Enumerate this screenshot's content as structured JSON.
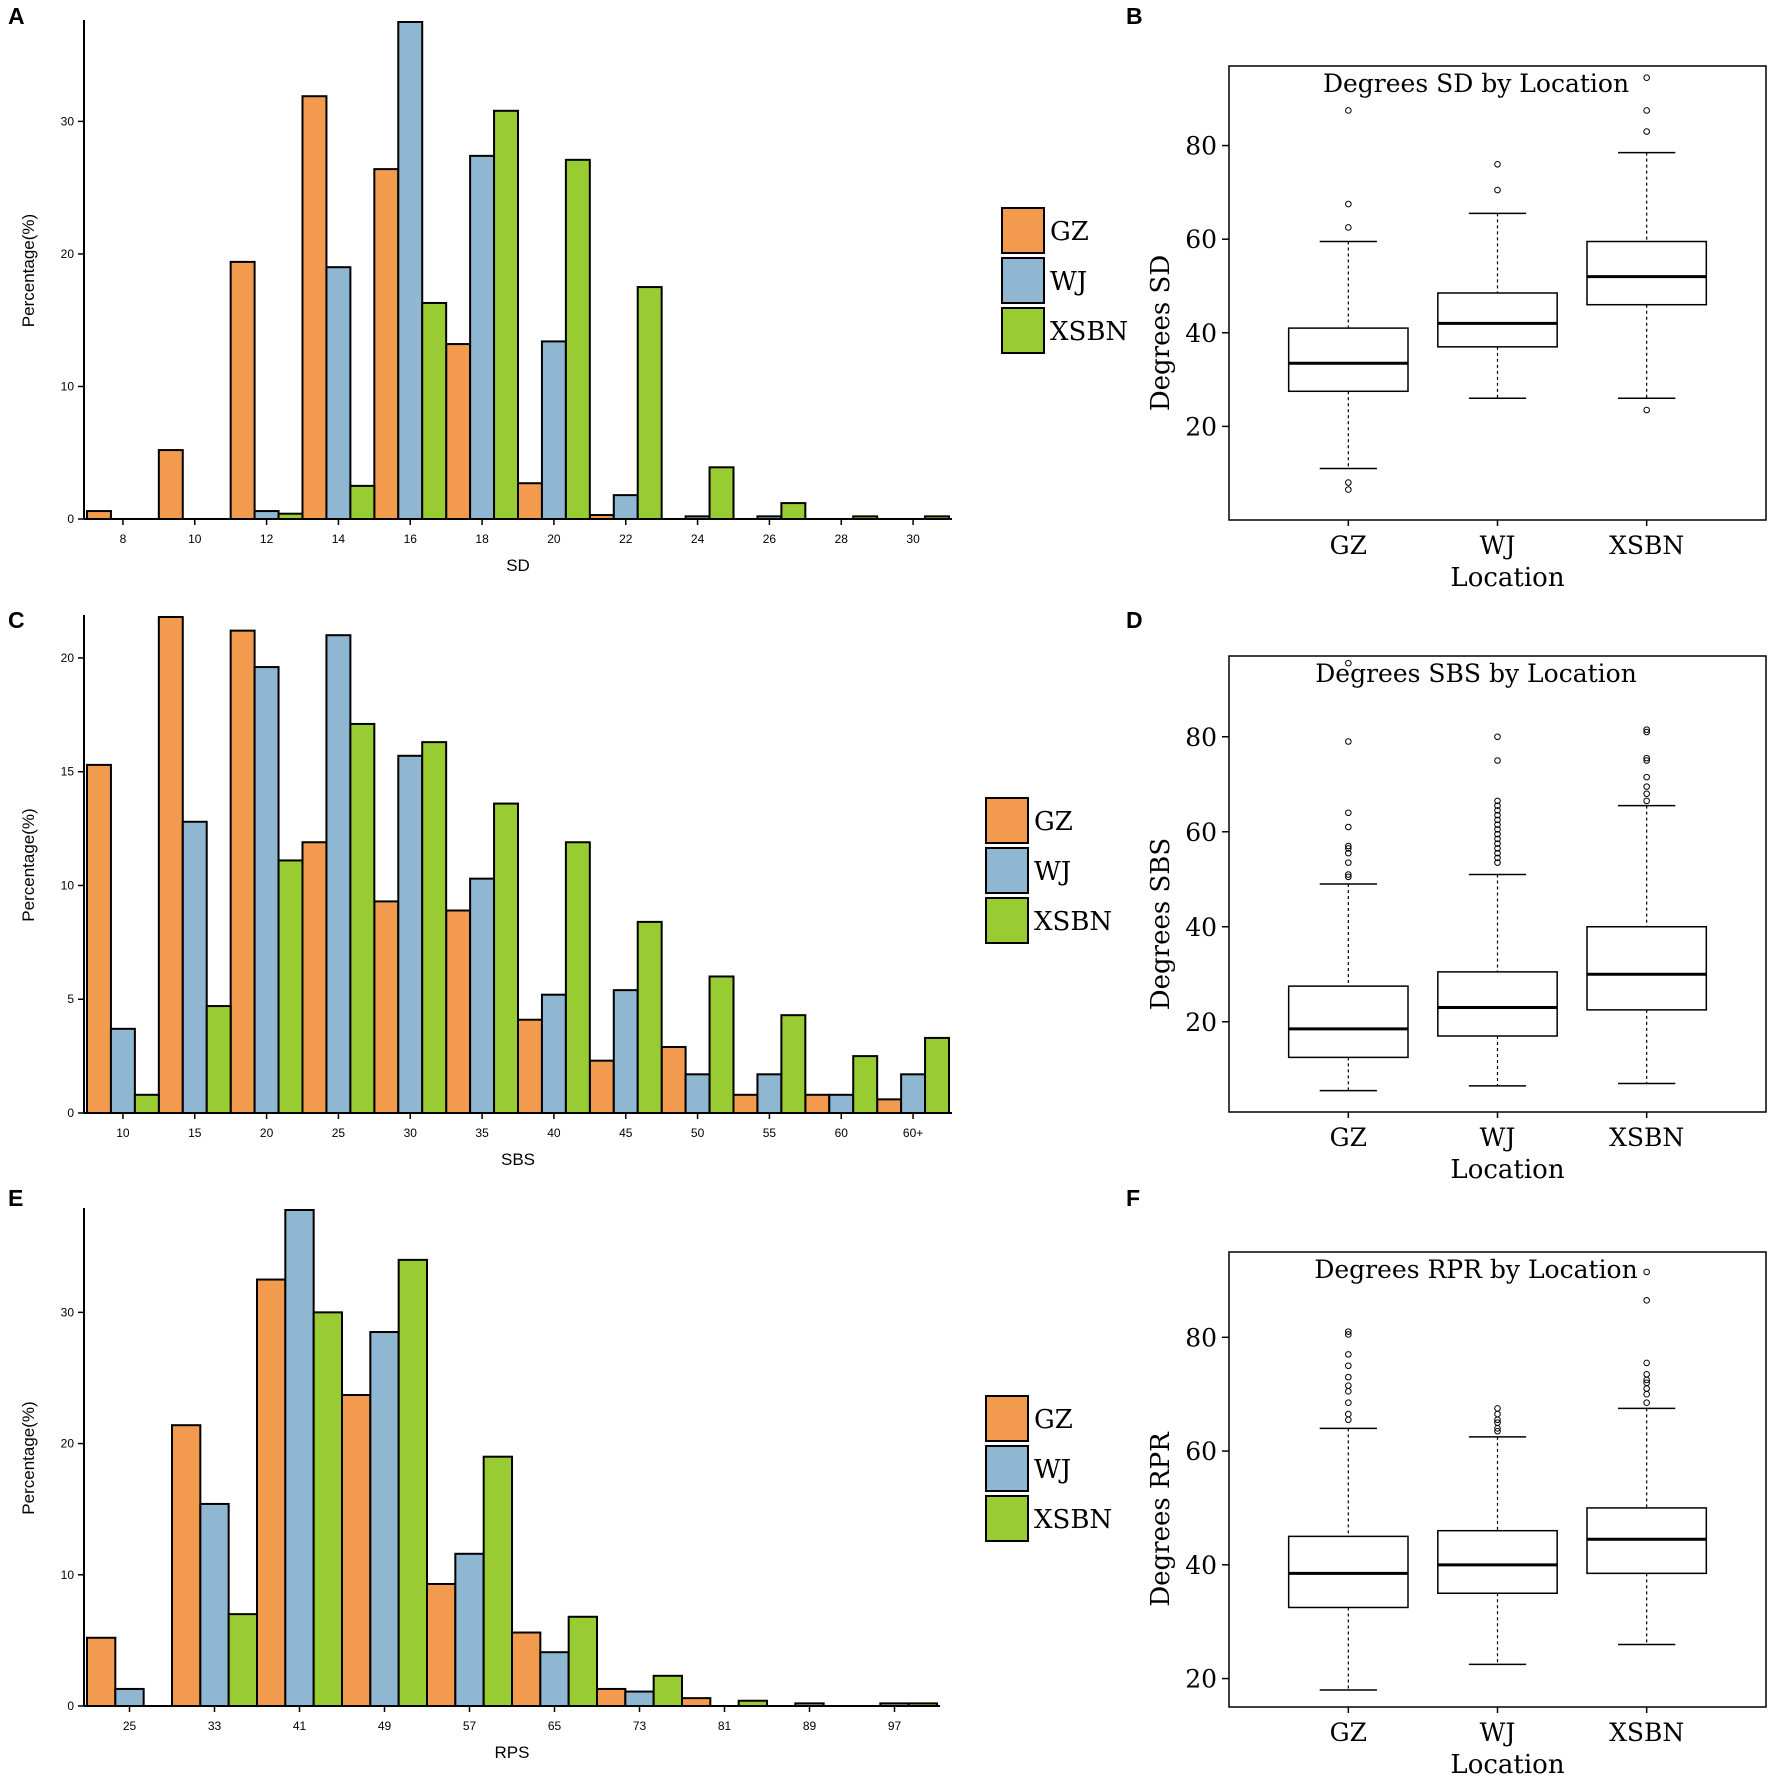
{
  "colors": {
    "GZ": "#f29b4f",
    "WJ": "#8fb7d1",
    "XSBN": "#99cc33"
  },
  "chart_data": [
    {
      "panel": "A",
      "type": "bar",
      "xlabel": "SD",
      "ylabel": "Percentage(%)",
      "categories": [
        "8",
        "10",
        "12",
        "14",
        "16",
        "18",
        "20",
        "22",
        "24",
        "26",
        "28",
        "30"
      ],
      "ylim": [
        0,
        37.5
      ],
      "yticks": [
        0,
        10,
        20,
        30
      ],
      "legend": [
        "GZ",
        "WJ",
        "XSBN"
      ],
      "series": [
        {
          "name": "GZ",
          "values": [
            0.6,
            5.2,
            19.4,
            31.9,
            26.4,
            13.2,
            2.7,
            0.3,
            0,
            0,
            0,
            0
          ]
        },
        {
          "name": "WJ",
          "values": [
            0,
            0,
            0.6,
            19.0,
            37.5,
            27.4,
            13.4,
            1.8,
            0.2,
            0.2,
            0,
            0
          ]
        },
        {
          "name": "XSBN",
          "values": [
            0,
            0,
            0.4,
            2.5,
            16.3,
            30.8,
            27.1,
            17.5,
            3.9,
            1.2,
            0.2,
            0.2
          ]
        }
      ]
    },
    {
      "panel": "B",
      "type": "box",
      "title": "Degrees SD by Location",
      "xlabel": "Location",
      "ylabel": "Degrees SD",
      "categories": [
        "GZ",
        "WJ",
        "XSBN"
      ],
      "ylim": [
        0,
        97
      ],
      "yticks": [
        20,
        40,
        60,
        80
      ],
      "boxes": [
        {
          "name": "GZ",
          "lower_whisker": 11,
          "q1": 27.5,
          "median": 33.5,
          "q3": 41,
          "upper_whisker": 59.5,
          "outliers": [
            6.5,
            8,
            62.5,
            67.5,
            87.5
          ]
        },
        {
          "name": "WJ",
          "lower_whisker": 26,
          "q1": 37,
          "median": 42,
          "q3": 48.5,
          "upper_whisker": 65.5,
          "outliers": [
            70.5,
            76
          ]
        },
        {
          "name": "XSBN",
          "lower_whisker": 26,
          "q1": 46,
          "median": 52,
          "q3": 59.5,
          "upper_whisker": 78.5,
          "outliers": [
            23.5,
            83,
            87.5,
            94.5
          ]
        }
      ]
    },
    {
      "panel": "C",
      "type": "bar",
      "xlabel": "SBS",
      "ylabel": "Percentage(%)",
      "categories": [
        "10",
        "15",
        "20",
        "25",
        "30",
        "35",
        "40",
        "45",
        "50",
        "55",
        "60",
        "60+"
      ],
      "ylim": [
        0,
        21.8
      ],
      "yticks": [
        0,
        5,
        10,
        15,
        20
      ],
      "legend": [
        "GZ",
        "WJ",
        "XSBN"
      ],
      "series": [
        {
          "name": "GZ",
          "values": [
            15.3,
            21.8,
            21.2,
            11.9,
            9.3,
            8.9,
            4.1,
            2.3,
            2.9,
            0.8,
            0.8,
            0.6
          ]
        },
        {
          "name": "WJ",
          "values": [
            3.7,
            12.8,
            19.6,
            21.0,
            15.7,
            10.3,
            5.2,
            5.4,
            1.7,
            1.7,
            0.8,
            1.7
          ]
        },
        {
          "name": "XSBN",
          "values": [
            0.8,
            4.7,
            11.1,
            17.1,
            16.3,
            13.6,
            11.9,
            8.4,
            6.0,
            4.3,
            2.5,
            3.3
          ]
        }
      ]
    },
    {
      "panel": "D",
      "type": "box",
      "title": "Degrees SBS by Location",
      "xlabel": "Location",
      "ylabel": "Degrees SBS",
      "categories": [
        "GZ",
        "WJ",
        "XSBN"
      ],
      "ylim": [
        1,
        97
      ],
      "yticks": [
        20,
        40,
        60,
        80
      ],
      "boxes": [
        {
          "name": "GZ",
          "lower_whisker": 5.5,
          "q1": 12.5,
          "median": 18.5,
          "q3": 27.5,
          "upper_whisker": 49,
          "outliers": [
            50.5,
            51,
            53.5,
            55.5,
            56.5,
            57,
            61,
            64,
            79,
            95.5
          ]
        },
        {
          "name": "WJ",
          "lower_whisker": 6.5,
          "q1": 17,
          "median": 23,
          "q3": 30.5,
          "upper_whisker": 51,
          "outliers": [
            53.5,
            54.5,
            55.5,
            56.5,
            57.5,
            58.5,
            59.5,
            60.5,
            61.5,
            62.5,
            63.5,
            64.5,
            65.5,
            66.5,
            75,
            80
          ]
        },
        {
          "name": "XSBN",
          "lower_whisker": 7,
          "q1": 22.5,
          "median": 30,
          "q3": 40,
          "upper_whisker": 65.5,
          "outliers": [
            66.5,
            68,
            69.5,
            71.5,
            75,
            75.5,
            81,
            81.5
          ]
        }
      ]
    },
    {
      "panel": "E",
      "type": "bar",
      "xlabel": "RPS",
      "ylabel": "Percentage(%)",
      "categories": [
        "25",
        "33",
        "41",
        "49",
        "57",
        "65",
        "73",
        "81",
        "89",
        "97"
      ],
      "ylim": [
        0,
        37.8
      ],
      "yticks": [
        0,
        10,
        20,
        30
      ],
      "legend": [
        "GZ",
        "WJ",
        "XSBN"
      ],
      "series": [
        {
          "name": "GZ",
          "values": [
            5.2,
            21.4,
            32.5,
            23.7,
            9.3,
            5.6,
            1.3,
            0.6,
            0,
            0
          ]
        },
        {
          "name": "WJ",
          "values": [
            1.3,
            15.4,
            37.8,
            28.5,
            11.6,
            4.1,
            1.1,
            0,
            0.2,
            0.2
          ]
        },
        {
          "name": "XSBN",
          "values": [
            0,
            7.0,
            30.0,
            34.0,
            19.0,
            6.8,
            2.3,
            0.4,
            0,
            0.2
          ]
        }
      ]
    },
    {
      "panel": "F",
      "type": "box",
      "title": "Degrees RPR by Location",
      "xlabel": "Location",
      "ylabel": "Degrees RPR",
      "categories": [
        "GZ",
        "WJ",
        "XSBN"
      ],
      "ylim": [
        15,
        95
      ],
      "yticks": [
        20,
        40,
        60,
        80
      ],
      "boxes": [
        {
          "name": "GZ",
          "lower_whisker": 18,
          "q1": 32.5,
          "median": 38.5,
          "q3": 45,
          "upper_whisker": 64,
          "outliers": [
            65.5,
            66.5,
            68.5,
            70.5,
            71.5,
            73,
            75,
            77,
            80.5,
            81
          ]
        },
        {
          "name": "WJ",
          "lower_whisker": 22.5,
          "q1": 35,
          "median": 40,
          "q3": 46,
          "upper_whisker": 62.5,
          "outliers": [
            63.5,
            64,
            65,
            65.5,
            66.5,
            67.5
          ]
        },
        {
          "name": "XSBN",
          "lower_whisker": 26,
          "q1": 38.5,
          "median": 44.5,
          "q3": 50,
          "upper_whisker": 67.5,
          "outliers": [
            68.5,
            70,
            71,
            72,
            72.5,
            73.5,
            75.5,
            86.5,
            91.5
          ]
        }
      ]
    }
  ]
}
